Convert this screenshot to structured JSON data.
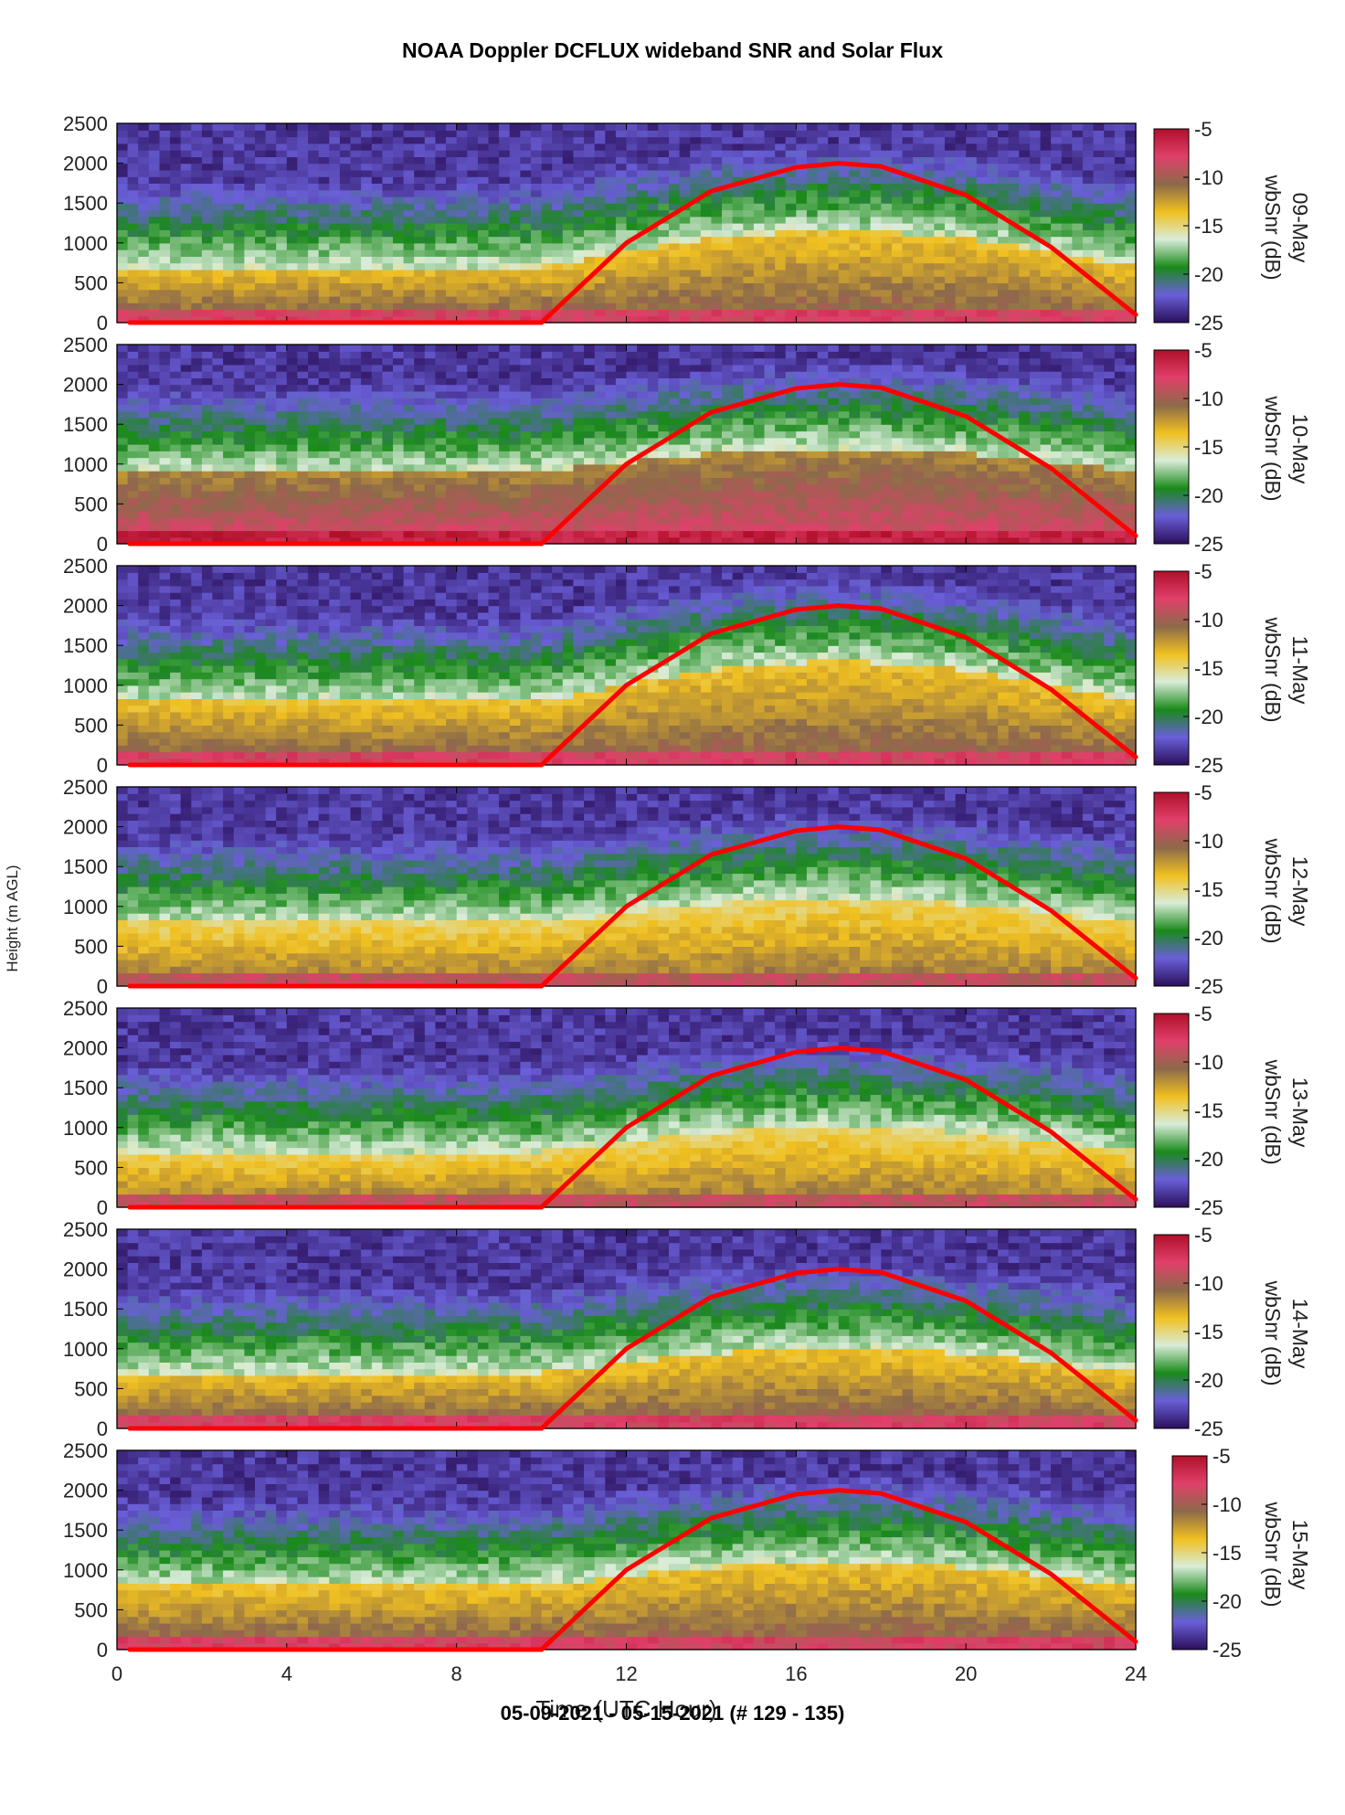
{
  "figure": {
    "title": "NOAA Doppler DCFLUX wideband SNR and Solar Flux",
    "footer": "05-09-2021 - 05-15-2021   (# 129 - 135)"
  },
  "chart_data": {
    "type": "heatmap",
    "xlabel": "Time (UTC Hour)",
    "ylabel": "Height (m AGL)",
    "xlim": [
      0,
      24
    ],
    "ylim": [
      0,
      2500
    ],
    "x_ticks": [
      0,
      4,
      8,
      12,
      16,
      20,
      24
    ],
    "y_ticks": [
      0,
      500,
      1000,
      1500,
      2000,
      2500
    ],
    "colorbar": {
      "label": "wbSnr (dB)",
      "range": [
        -25,
        -5
      ],
      "ticks": [
        -5,
        -10,
        -15,
        -20,
        -25
      ],
      "colormap": [
        "#2a0f5a",
        "#6a5fd8",
        "#1a8a1a",
        "#d9ecd9",
        "#f0c020",
        "#8c6a4a",
        "#e0406a",
        "#b0102a"
      ]
    },
    "panels": [
      {
        "day_label": "09-May",
        "pbl_base_m": 700,
        "pbl_peak_m": 1150,
        "surface_snr_db": -9
      },
      {
        "day_label": "10-May",
        "pbl_base_m": 900,
        "pbl_peak_m": 1200,
        "surface_snr_db": -7
      },
      {
        "day_label": "11-May",
        "pbl_base_m": 800,
        "pbl_peak_m": 1300,
        "surface_snr_db": -9
      },
      {
        "day_label": "12-May",
        "pbl_base_m": 800,
        "pbl_peak_m": 1100,
        "surface_snr_db": -10
      },
      {
        "day_label": "13-May",
        "pbl_base_m": 700,
        "pbl_peak_m": 1000,
        "surface_snr_db": -10
      },
      {
        "day_label": "14-May",
        "pbl_base_m": 700,
        "pbl_peak_m": 1000,
        "surface_snr_db": -9
      },
      {
        "day_label": "15-May",
        "pbl_base_m": 800,
        "pbl_peak_m": 1100,
        "surface_snr_db": -9
      }
    ],
    "solar_flux": {
      "color": "#ff0000",
      "points": [
        [
          0.3,
          0
        ],
        [
          10.0,
          0
        ],
        [
          12,
          1000
        ],
        [
          14,
          1650
        ],
        [
          16,
          1950
        ],
        [
          17,
          2000
        ],
        [
          18,
          1960
        ],
        [
          20,
          1600
        ],
        [
          22,
          950
        ],
        [
          24,
          100
        ]
      ]
    }
  }
}
